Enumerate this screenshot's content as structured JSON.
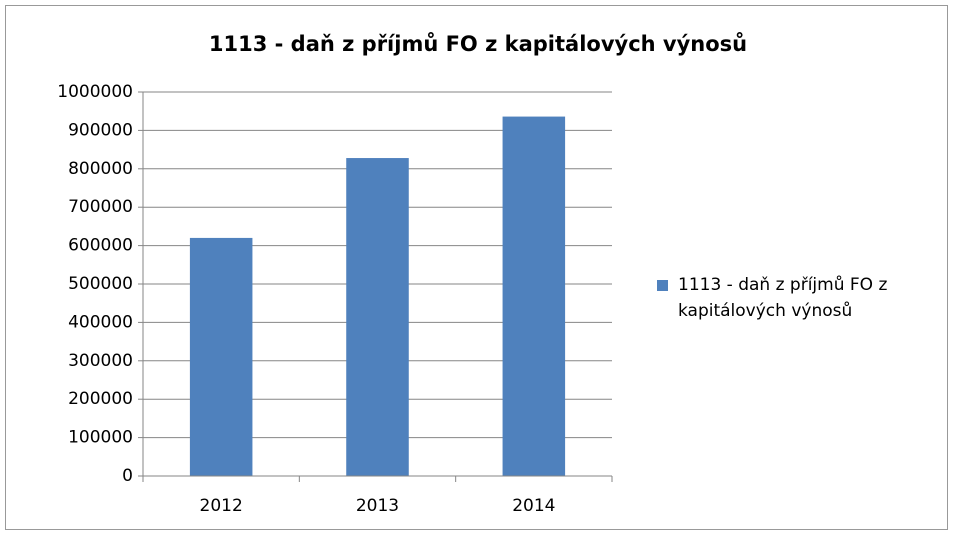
{
  "chart_data": {
    "type": "bar",
    "title": "1113 - daň z příjmů FO z kapitálových výnosů",
    "categories": [
      "2012",
      "2013",
      "2014"
    ],
    "series": [
      {
        "name": "1113 - daň z příjmů FO z kapitálových výnosů",
        "color": "#4f81bd",
        "values": [
          620000,
          828000,
          936000
        ]
      }
    ],
    "ylim": [
      0,
      1000000
    ],
    "yticks": [
      0,
      100000,
      200000,
      300000,
      400000,
      500000,
      600000,
      700000,
      800000,
      900000,
      1000000
    ],
    "grid": true,
    "legend": "right"
  }
}
